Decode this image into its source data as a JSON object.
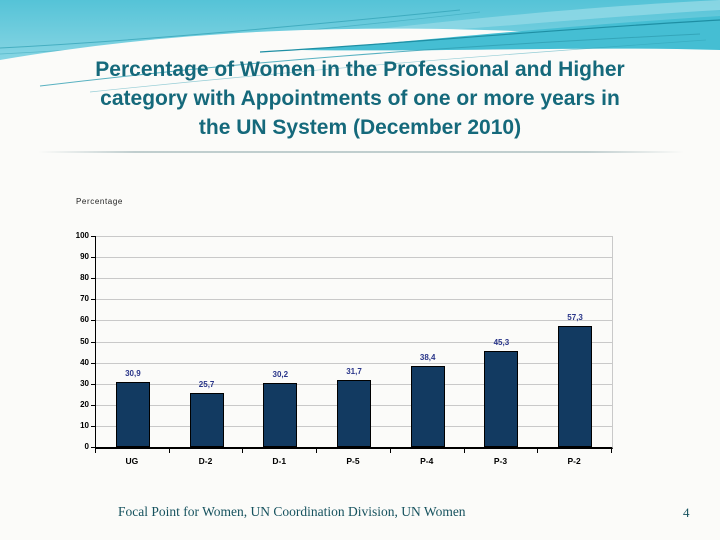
{
  "slide": {
    "title_lines": [
      "Percentage of Women in the Professional and Higher",
      "category with Appointments of one or more years in",
      "the UN System (December 2010)"
    ],
    "footer_text": "Focal Point for Women, UN Coordination Division, UN Women",
    "page_number": "4"
  },
  "chart_data": {
    "type": "bar",
    "title": "",
    "axis_label": "Percentage",
    "categories": [
      "UG",
      "D-2",
      "D-1",
      "P-5",
      "P-4",
      "P-3",
      "P-2"
    ],
    "values": [
      30.9,
      25.7,
      30.2,
      31.7,
      38.4,
      45.3,
      57.3
    ],
    "value_labels": [
      "30,9",
      "25,7",
      "30,2",
      "31,7",
      "38,4",
      "45,3",
      "57,3"
    ],
    "ylim": [
      0,
      100
    ],
    "ytick_step": 10,
    "grid": true,
    "legend": "none",
    "bar_color": "#123A61",
    "bar_border_color": "#000000",
    "value_label_color": "#293589",
    "grid_color": "#C9C9C9"
  },
  "theme": {
    "title_color": "#15697B",
    "footer_color": "#16525E",
    "header_cyan_dark": "#55C3D7",
    "header_cyan_light": "#B5E6EF",
    "ribbon_teal": "#45BED3",
    "accent_line_teal": "#2F9FB3"
  }
}
